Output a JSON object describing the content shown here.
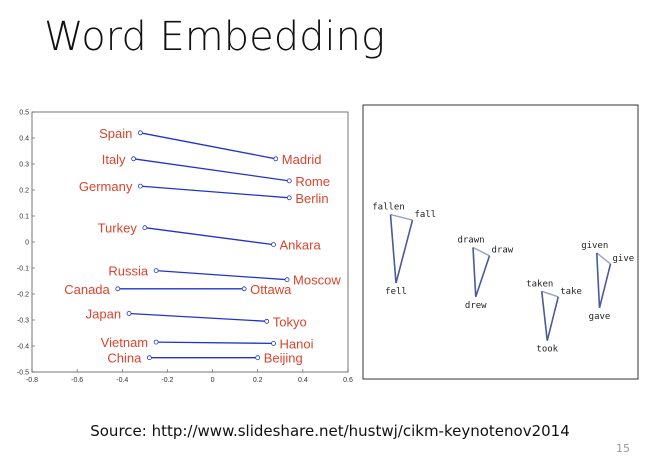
{
  "slide": {
    "title": "Word Embedding",
    "source": "Source: http://www.slideshare.net/hustwj/cikm-keynotenov2014",
    "page_number": "15"
  },
  "chart_data": [
    {
      "type": "scatter",
      "xlim": [
        -0.8,
        0.6
      ],
      "ylim": [
        -0.5,
        0.5
      ],
      "x_ticks": [
        "-0.8",
        "-0.6",
        "-0.4",
        "-0.2",
        "0",
        "0.2",
        "0.4",
        "0.6"
      ],
      "y_ticks": [
        "0.5",
        "0.4",
        "0.3",
        "0.2",
        "0.1",
        "0",
        "-0.1",
        "-0.2",
        "-0.3",
        "-0.4",
        "-0.5"
      ],
      "colors": {
        "label": "#d9442d",
        "line": "#2233cc"
      },
      "pairs": [
        {
          "country": "Spain",
          "cx": -0.32,
          "cy": 0.42,
          "capital": "Madrid",
          "kx": 0.28,
          "ky": 0.32
        },
        {
          "country": "Italy",
          "cx": -0.35,
          "cy": 0.32,
          "capital": "Rome",
          "kx": 0.34,
          "ky": 0.235
        },
        {
          "country": "Germany",
          "cx": -0.32,
          "cy": 0.215,
          "capital": "Berlin",
          "kx": 0.34,
          "ky": 0.17
        },
        {
          "country": "Turkey",
          "cx": -0.3,
          "cy": 0.055,
          "capital": "Ankara",
          "kx": 0.27,
          "ky": -0.01
        },
        {
          "country": "Russia",
          "cx": -0.25,
          "cy": -0.11,
          "capital": "Moscow",
          "kx": 0.33,
          "ky": -0.145
        },
        {
          "country": "Canada",
          "cx": -0.42,
          "cy": -0.18,
          "capital": "Ottawa",
          "kx": 0.14,
          "ky": -0.18
        },
        {
          "country": "Japan",
          "cx": -0.37,
          "cy": -0.275,
          "capital": "Tokyo",
          "kx": 0.24,
          "ky": -0.305
        },
        {
          "country": "Vietnam",
          "cx": -0.25,
          "cy": -0.385,
          "capital": "Hanoi",
          "kx": 0.27,
          "ky": -0.39
        },
        {
          "country": "China",
          "cx": -0.28,
          "cy": -0.445,
          "capital": "Beijing",
          "kx": 0.2,
          "ky": -0.445
        }
      ]
    },
    {
      "type": "scatter",
      "colors": {
        "line": "#4a5a9a",
        "line_light": "#9aa0c8"
      },
      "triangles": [
        {
          "points": [
            {
              "word": "fallen",
              "x": 0.1,
              "y": 0.4
            },
            {
              "word": "fall",
              "x": 0.18,
              "y": 0.42
            },
            {
              "word": "fell",
              "x": 0.12,
              "y": 0.65
            }
          ]
        },
        {
          "points": [
            {
              "word": "drawn",
              "x": 0.4,
              "y": 0.52
            },
            {
              "word": "draw",
              "x": 0.46,
              "y": 0.55
            },
            {
              "word": "drew",
              "x": 0.41,
              "y": 0.7
            }
          ]
        },
        {
          "points": [
            {
              "word": "taken",
              "x": 0.65,
              "y": 0.68
            },
            {
              "word": "take",
              "x": 0.71,
              "y": 0.7
            },
            {
              "word": "took",
              "x": 0.67,
              "y": 0.86
            }
          ]
        },
        {
          "points": [
            {
              "word": "given",
              "x": 0.85,
              "y": 0.54
            },
            {
              "word": "give",
              "x": 0.9,
              "y": 0.58
            },
            {
              "word": "gave",
              "x": 0.86,
              "y": 0.74
            }
          ]
        }
      ]
    }
  ]
}
